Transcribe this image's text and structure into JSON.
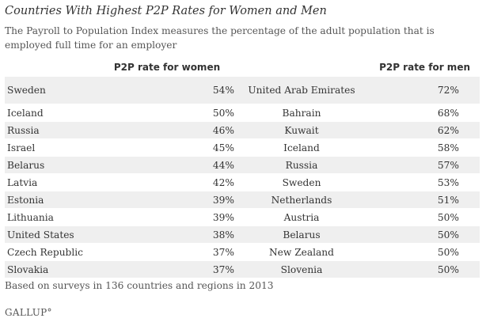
{
  "title": "Countries With Highest P2P Rates for Women and Men",
  "subtitle": "The Payroll to Population Index measures the percentage of the adult population that is employed full time for an employer",
  "note": "Based on surveys in 136 countries and regions in 2013",
  "logo": "GALLUP°",
  "chart_data": {
    "type": "table",
    "title": "Countries With Highest P2P Rates for Women and Men",
    "columns": [
      "",
      "P2P rate for women",
      "",
      "P2P rate for men"
    ],
    "rows": [
      {
        "women_country": "Sweden",
        "women_rate": "54%",
        "men_country": "United Arab Emirates",
        "men_rate": "72%"
      },
      {
        "women_country": "Iceland",
        "women_rate": "50%",
        "men_country": "Bahrain",
        "men_rate": "68%"
      },
      {
        "women_country": "Russia",
        "women_rate": "46%",
        "men_country": "Kuwait",
        "men_rate": "62%"
      },
      {
        "women_country": "Israel",
        "women_rate": "45%",
        "men_country": "Iceland",
        "men_rate": "58%"
      },
      {
        "women_country": "Belarus",
        "women_rate": "44%",
        "men_country": "Russia",
        "men_rate": "57%"
      },
      {
        "women_country": "Latvia",
        "women_rate": "42%",
        "men_country": "Sweden",
        "men_rate": "53%"
      },
      {
        "women_country": "Estonia",
        "women_rate": "39%",
        "men_country": "Netherlands",
        "men_rate": "51%"
      },
      {
        "women_country": "Lithuania",
        "women_rate": "39%",
        "men_country": "Austria",
        "men_rate": "50%"
      },
      {
        "women_country": "United States",
        "women_rate": "38%",
        "men_country": "Belarus",
        "men_rate": "50%"
      },
      {
        "women_country": "Czech Republic",
        "women_rate": "37%",
        "men_country": "New Zealand",
        "men_rate": "50%"
      },
      {
        "women_country": "Slovakia",
        "women_rate": "37%",
        "men_country": "Slovenia",
        "men_rate": "50%"
      }
    ]
  }
}
